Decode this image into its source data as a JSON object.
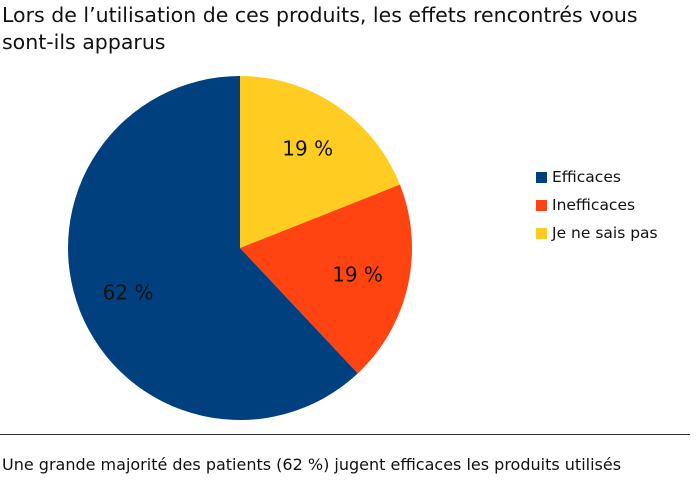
{
  "chart_data": {
    "type": "pie",
    "title": "Lors de l’utilisation de ces produits, les effets rencontrés vous sont-ils apparus",
    "slices": [
      {
        "label": "Je ne sais pas",
        "value": 19,
        "value_label": "19 %",
        "color": "#FFCC22"
      },
      {
        "label": "Inefficaces",
        "value": 19,
        "value_label": "19 %",
        "color": "#FF4411"
      },
      {
        "label": "Efficaces",
        "value": 62,
        "value_label": "62 %",
        "color": "#00407F"
      }
    ],
    "legend": {
      "placement": "right",
      "entries": [
        "Efficaces",
        "Inefficaces",
        "Je ne sais pas"
      ],
      "colors": [
        "#00407F",
        "#FF4411",
        "#FFCC22"
      ]
    },
    "footnote": "Une grande majorité des patients (62 %) jugent efficaces les produits utilisés"
  }
}
